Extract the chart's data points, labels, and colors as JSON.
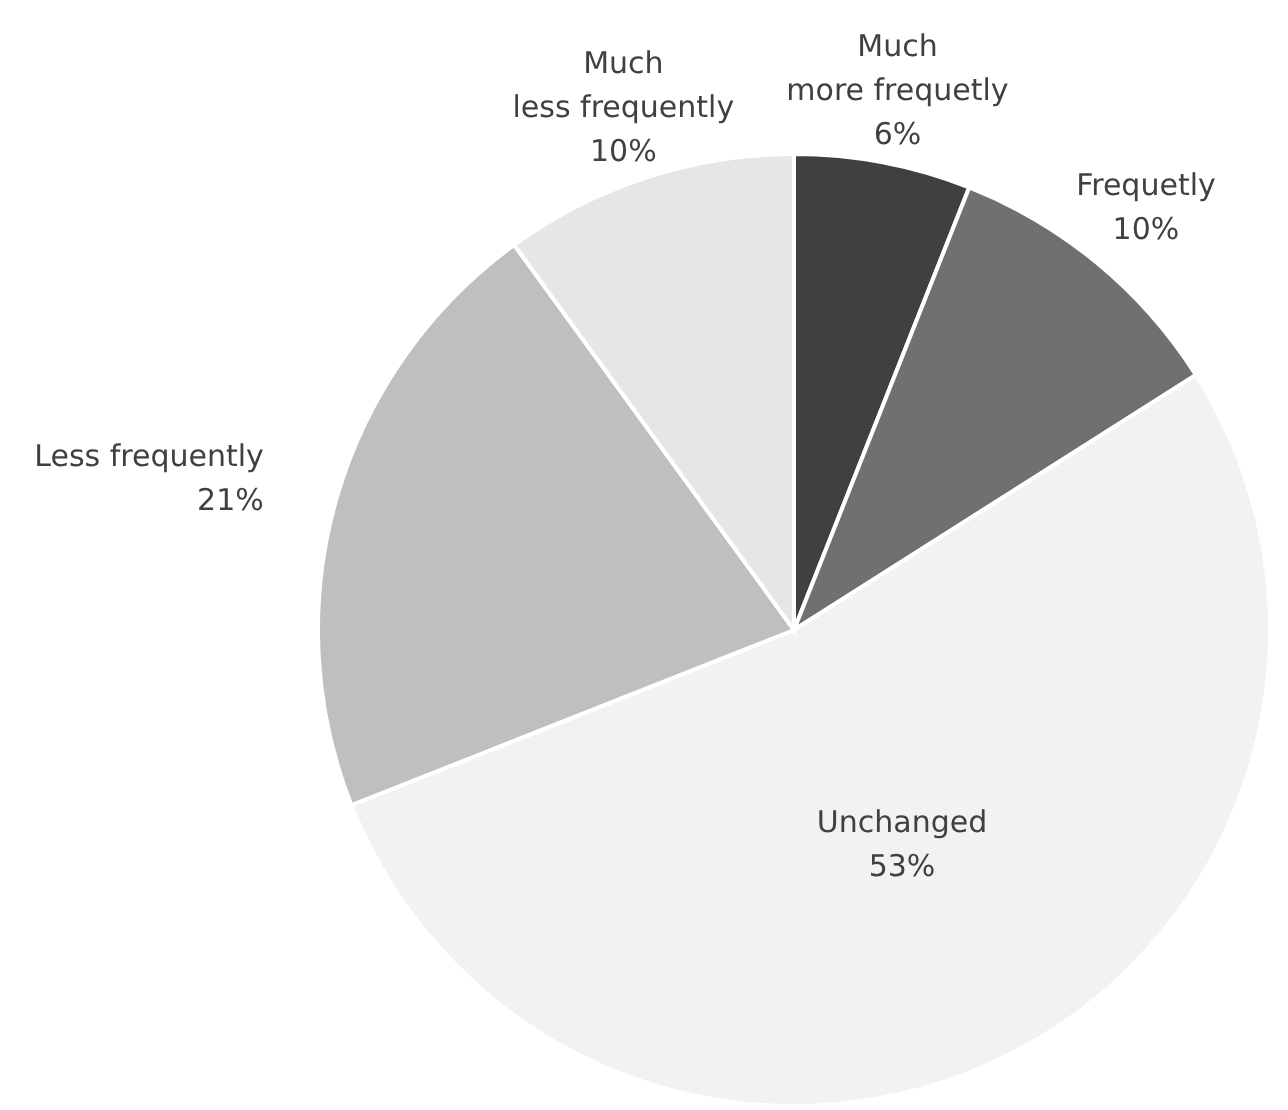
{
  "chart_data": {
    "type": "pie",
    "categories": [
      "Much more frequetly",
      "Frequetly",
      "Unchanged",
      "Less frequently",
      "Much less frequently"
    ],
    "values": [
      6,
      10,
      53,
      21,
      10
    ],
    "value_labels": [
      "6%",
      "10%",
      "53%",
      "21%",
      "10%"
    ],
    "colors": [
      "#404040",
      "#707070",
      "#f2f2f2",
      "#bfbfbf",
      "#e6e6e6"
    ]
  }
}
